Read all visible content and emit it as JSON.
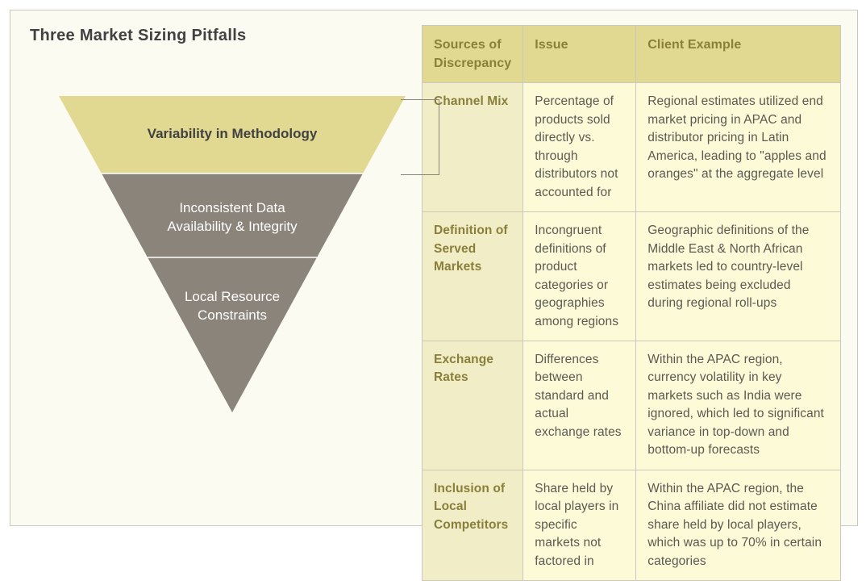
{
  "title": "Three Market Sizing Pitfalls",
  "funnel": {
    "segments": [
      {
        "label": "Variability in Methodology",
        "fill": "#e1d992",
        "text_color": "#414141"
      },
      {
        "label": "Inconsistent Data\nAvailability & Integrity",
        "fill": "#8a847b",
        "text_color": "#ffffff"
      },
      {
        "label": "Local Resource\nConstraints",
        "fill": "#8a847b",
        "text_color": "#ffffff"
      }
    ],
    "divider_color": "#ffffff",
    "fontsize": 17
  },
  "table": {
    "header_bg": "#e1d992",
    "src_bg": "#f0edc7",
    "cell_bg": "#fdfad7",
    "border_color": "#c9c9bf",
    "header_text_color": "#8a7f3a",
    "body_text_color": "#5a5a52",
    "fontsize": 15.5,
    "columns": [
      "Sources of Discrepancy",
      "Issue",
      "Client Example"
    ],
    "rows": [
      {
        "source": "Channel Mix",
        "issue": "Percentage of products sold directly vs. through distributors not accounted for",
        "example": "Regional estimates utilized end market pricing in APAC and distributor pricing in Latin America, leading to \"apples and oranges\" at the aggregate level"
      },
      {
        "source": "Definition of Served Markets",
        "issue": "Incongruent definitions of product categories or geographies among regions",
        "example": "Geographic definitions of the Middle East & North African markets led to country-level estimates being excluded during regional roll-ups"
      },
      {
        "source": "Exchange Rates",
        "issue": "Differences between standard and actual exchange rates",
        "example": "Within the APAC region, currency volatility in key markets such as India were ignored, which led to significant variance in top-down and bottom-up forecasts"
      },
      {
        "source": "Inclusion of Local Competitors",
        "issue": "Share held by local players in specific markets not factored in",
        "example": "Within the APAC region, the China affiliate did not estimate share held by local players, which was up to 70% in certain categories"
      }
    ]
  },
  "colors": {
    "frame_bg": "#fbfbf2",
    "frame_border": "#c9c9bf",
    "connector": "#8a847b"
  }
}
